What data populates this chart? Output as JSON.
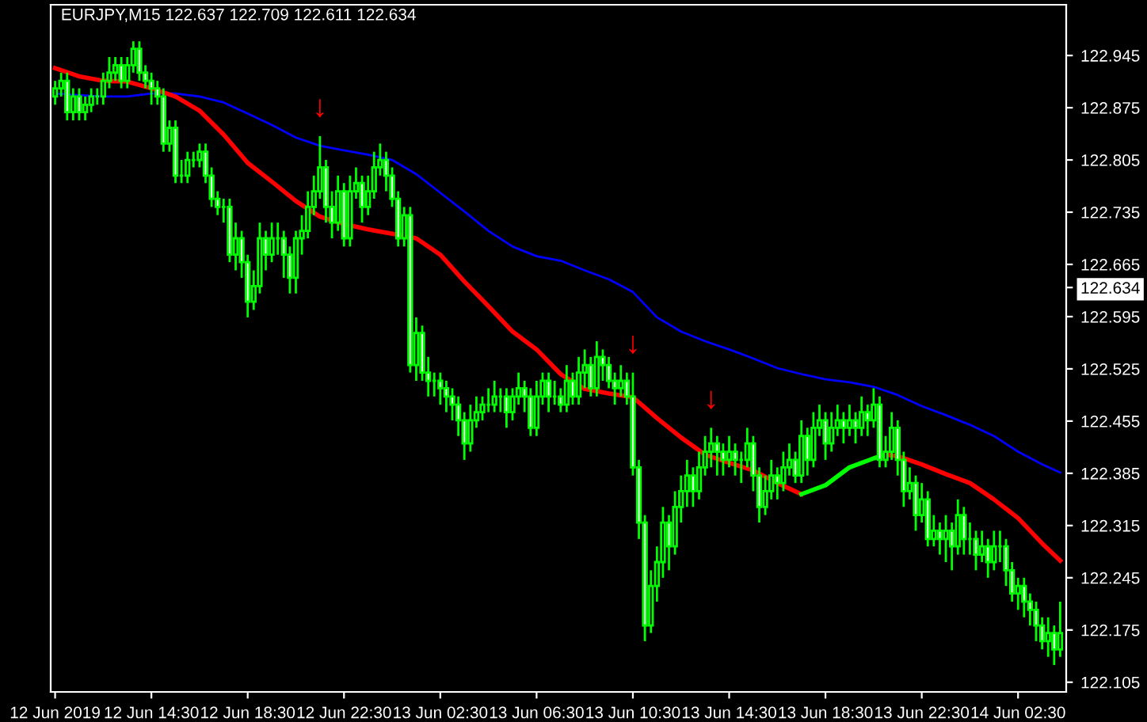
{
  "chart_data": {
    "type": "candlestick",
    "title": "EURJPY,M15 122.637 122.709 122.611 122.634",
    "x": [
      "2019-06-12T10:30",
      "2019-06-12T10:45",
      "2019-06-12T11:00",
      "2019-06-12T11:15",
      "2019-06-12T11:30",
      "2019-06-12T11:45",
      "2019-06-12T12:00",
      "2019-06-12T12:15",
      "2019-06-12T12:30",
      "2019-06-12T12:45",
      "2019-06-12T13:00",
      "2019-06-12T13:15",
      "2019-06-12T13:30",
      "2019-06-12T13:45",
      "2019-06-12T14:00",
      "2019-06-12T14:15",
      "2019-06-12T14:30",
      "2019-06-12T14:45",
      "2019-06-12T15:00",
      "2019-06-12T15:15",
      "2019-06-12T15:30",
      "2019-06-12T15:45",
      "2019-06-12T16:00",
      "2019-06-12T16:15",
      "2019-06-12T16:30",
      "2019-06-12T16:45",
      "2019-06-12T17:00",
      "2019-06-12T17:15",
      "2019-06-12T17:30",
      "2019-06-12T17:45",
      "2019-06-12T18:00",
      "2019-06-12T18:15",
      "2019-06-12T18:30",
      "2019-06-12T18:45",
      "2019-06-12T19:00",
      "2019-06-12T19:15",
      "2019-06-12T19:30",
      "2019-06-12T19:45",
      "2019-06-12T20:00",
      "2019-06-12T20:15",
      "2019-06-12T20:30",
      "2019-06-12T20:45",
      "2019-06-12T21:00",
      "2019-06-12T21:15",
      "2019-06-12T21:30",
      "2019-06-12T21:45",
      "2019-06-12T22:00",
      "2019-06-12T22:15",
      "2019-06-12T22:30",
      "2019-06-12T22:45",
      "2019-06-12T23:00",
      "2019-06-12T23:15",
      "2019-06-12T23:30",
      "2019-06-12T23:45",
      "2019-06-13T00:00",
      "2019-06-13T00:15",
      "2019-06-13T00:30",
      "2019-06-13T00:45",
      "2019-06-13T01:00",
      "2019-06-13T01:15",
      "2019-06-13T01:30",
      "2019-06-13T01:45",
      "2019-06-13T02:00",
      "2019-06-13T02:15",
      "2019-06-13T02:30",
      "2019-06-13T02:45",
      "2019-06-13T03:00",
      "2019-06-13T03:15",
      "2019-06-13T03:30",
      "2019-06-13T03:45",
      "2019-06-13T04:00",
      "2019-06-13T04:15",
      "2019-06-13T04:30",
      "2019-06-13T04:45",
      "2019-06-13T05:00",
      "2019-06-13T05:15",
      "2019-06-13T05:30",
      "2019-06-13T05:45",
      "2019-06-13T06:00",
      "2019-06-13T06:15",
      "2019-06-13T06:30",
      "2019-06-13T06:45",
      "2019-06-13T07:00",
      "2019-06-13T07:15",
      "2019-06-13T07:30",
      "2019-06-13T07:45",
      "2019-06-13T08:00",
      "2019-06-13T08:15",
      "2019-06-13T08:30",
      "2019-06-13T08:45",
      "2019-06-13T09:00",
      "2019-06-13T09:15",
      "2019-06-13T09:30",
      "2019-06-13T09:45",
      "2019-06-13T10:00",
      "2019-06-13T10:15",
      "2019-06-13T10:30",
      "2019-06-13T10:45",
      "2019-06-13T11:00",
      "2019-06-13T11:15",
      "2019-06-13T11:30",
      "2019-06-13T11:45",
      "2019-06-13T12:00",
      "2019-06-13T12:15",
      "2019-06-13T12:30",
      "2019-06-13T12:45",
      "2019-06-13T13:00",
      "2019-06-13T13:15",
      "2019-06-13T13:30",
      "2019-06-13T13:45",
      "2019-06-13T14:00",
      "2019-06-13T14:15",
      "2019-06-13T14:30",
      "2019-06-13T14:45",
      "2019-06-13T15:00",
      "2019-06-13T15:15",
      "2019-06-13T15:30",
      "2019-06-13T15:45",
      "2019-06-13T16:00",
      "2019-06-13T16:15",
      "2019-06-13T16:30",
      "2019-06-13T16:45",
      "2019-06-13T17:00",
      "2019-06-13T17:15",
      "2019-06-13T17:30",
      "2019-06-13T17:45",
      "2019-06-13T18:00",
      "2019-06-13T18:15",
      "2019-06-13T18:30",
      "2019-06-13T18:45",
      "2019-06-13T19:00",
      "2019-06-13T19:15",
      "2019-06-13T19:30",
      "2019-06-13T19:45",
      "2019-06-13T20:00",
      "2019-06-13T20:15",
      "2019-06-13T20:30",
      "2019-06-13T20:45",
      "2019-06-13T21:00",
      "2019-06-13T21:15",
      "2019-06-13T21:30",
      "2019-06-13T21:45",
      "2019-06-13T22:00",
      "2019-06-13T22:15",
      "2019-06-13T22:30",
      "2019-06-13T22:45",
      "2019-06-13T23:00",
      "2019-06-13T23:15",
      "2019-06-13T23:30",
      "2019-06-13T23:45",
      "2019-06-14T00:00",
      "2019-06-14T00:15",
      "2019-06-14T00:30",
      "2019-06-14T00:45",
      "2019-06-14T01:00",
      "2019-06-14T01:15",
      "2019-06-14T01:30",
      "2019-06-14T01:45",
      "2019-06-14T02:00",
      "2019-06-14T02:15",
      "2019-06-14T02:30",
      "2019-06-14T02:45",
      "2019-06-14T03:00",
      "2019-06-14T03:15",
      "2019-06-14T03:30",
      "2019-06-14T03:45",
      "2019-06-14T04:00",
      "2019-06-14T04:15"
    ],
    "series": [
      {
        "color": "#00ff00",
        "ohlc": [
          [
            122.89,
            122.911,
            122.879,
            122.901
          ],
          [
            122.901,
            122.922,
            122.89,
            122.911
          ],
          [
            122.911,
            122.922,
            122.858,
            122.869
          ],
          [
            122.869,
            122.901,
            122.858,
            122.89
          ],
          [
            122.89,
            122.901,
            122.858,
            122.869
          ],
          [
            122.869,
            122.89,
            122.858,
            122.879
          ],
          [
            122.879,
            122.901,
            122.869,
            122.89
          ],
          [
            122.89,
            122.901,
            122.879,
            122.89
          ],
          [
            122.89,
            122.922,
            122.879,
            122.911
          ],
          [
            122.911,
            122.943,
            122.901,
            122.922
          ],
          [
            122.922,
            122.943,
            122.911,
            122.932
          ],
          [
            122.932,
            122.943,
            122.901,
            122.911
          ],
          [
            122.911,
            122.943,
            122.901,
            122.932
          ],
          [
            122.932,
            122.964,
            122.922,
            122.954
          ],
          [
            122.954,
            122.964,
            122.911,
            122.922
          ],
          [
            122.922,
            122.932,
            122.901,
            122.911
          ],
          [
            122.911,
            122.922,
            122.879,
            122.901
          ],
          [
            122.901,
            122.911,
            122.879,
            122.89
          ],
          [
            122.89,
            122.901,
            122.816,
            122.827
          ],
          [
            122.827,
            122.858,
            122.816,
            122.848
          ],
          [
            122.848,
            122.858,
            122.774,
            122.784
          ],
          [
            122.784,
            122.805,
            122.774,
            122.784
          ],
          [
            122.784,
            122.816,
            122.774,
            122.805
          ],
          [
            122.805,
            122.816,
            122.795,
            122.805
          ],
          [
            122.805,
            122.827,
            122.795,
            122.816
          ],
          [
            122.816,
            122.827,
            122.774,
            122.784
          ],
          [
            122.784,
            122.795,
            122.742,
            122.753
          ],
          [
            122.753,
            122.763,
            122.731,
            122.742
          ],
          [
            122.742,
            122.753,
            122.721,
            122.742
          ],
          [
            122.742,
            122.753,
            122.668,
            122.678
          ],
          [
            122.678,
            122.721,
            122.657,
            122.7
          ],
          [
            122.7,
            122.71,
            122.647,
            122.668
          ],
          [
            122.668,
            122.678,
            122.594,
            122.615
          ],
          [
            122.615,
            122.657,
            122.604,
            122.636
          ],
          [
            122.636,
            122.721,
            122.626,
            122.7
          ],
          [
            122.7,
            122.71,
            122.657,
            122.678
          ],
          [
            122.678,
            122.721,
            122.668,
            122.7
          ],
          [
            122.7,
            122.721,
            122.678,
            122.7
          ],
          [
            122.7,
            122.71,
            122.647,
            122.678
          ],
          [
            122.678,
            122.689,
            122.626,
            122.647
          ],
          [
            122.647,
            122.71,
            122.626,
            122.7
          ],
          [
            122.7,
            122.731,
            122.678,
            122.71
          ],
          [
            122.71,
            122.763,
            122.7,
            122.742
          ],
          [
            122.742,
            122.784,
            122.731,
            122.763
          ],
          [
            122.763,
            122.837,
            122.753,
            122.795
          ],
          [
            122.795,
            122.805,
            122.721,
            122.742
          ],
          [
            122.742,
            122.763,
            122.7,
            122.721
          ],
          [
            122.721,
            122.784,
            122.71,
            122.763
          ],
          [
            122.763,
            122.774,
            122.689,
            122.7
          ],
          [
            122.7,
            122.784,
            122.689,
            122.763
          ],
          [
            122.763,
            122.795,
            122.753,
            122.774
          ],
          [
            122.774,
            122.784,
            122.721,
            122.742
          ],
          [
            122.742,
            122.784,
            122.731,
            122.763
          ],
          [
            122.763,
            122.816,
            122.753,
            122.795
          ],
          [
            122.795,
            122.827,
            122.784,
            122.805
          ],
          [
            122.805,
            122.816,
            122.763,
            122.784
          ],
          [
            122.784,
            122.795,
            122.742,
            122.753
          ],
          [
            122.753,
            122.763,
            122.689,
            122.7
          ],
          [
            122.7,
            122.742,
            122.689,
            122.731
          ],
          [
            122.731,
            122.742,
            122.52,
            122.53
          ],
          [
            122.53,
            122.594,
            122.509,
            122.573
          ],
          [
            122.573,
            122.583,
            122.509,
            122.52
          ],
          [
            122.52,
            122.541,
            122.488,
            122.509
          ],
          [
            122.509,
            122.52,
            122.488,
            122.509
          ],
          [
            122.509,
            122.52,
            122.477,
            122.499
          ],
          [
            122.499,
            122.509,
            122.467,
            122.488
          ],
          [
            122.488,
            122.499,
            122.456,
            122.477
          ],
          [
            122.477,
            122.488,
            122.435,
            122.456
          ],
          [
            122.456,
            122.467,
            122.403,
            122.425
          ],
          [
            122.425,
            122.477,
            122.414,
            122.456
          ],
          [
            122.456,
            122.488,
            122.446,
            122.467
          ],
          [
            122.467,
            122.488,
            122.456,
            122.477
          ],
          [
            122.477,
            122.499,
            122.467,
            122.477
          ],
          [
            122.477,
            122.509,
            122.467,
            122.488
          ],
          [
            122.488,
            122.499,
            122.467,
            122.488
          ],
          [
            122.488,
            122.499,
            122.446,
            122.467
          ],
          [
            122.467,
            122.499,
            122.456,
            122.488
          ],
          [
            122.488,
            122.52,
            122.477,
            122.499
          ],
          [
            122.499,
            122.509,
            122.467,
            122.488
          ],
          [
            122.488,
            122.499,
            122.435,
            122.446
          ],
          [
            122.446,
            122.509,
            122.435,
            122.488
          ],
          [
            122.488,
            122.52,
            122.477,
            122.509
          ],
          [
            122.509,
            122.52,
            122.467,
            122.488
          ],
          [
            122.488,
            122.509,
            122.477,
            122.488
          ],
          [
            122.488,
            122.499,
            122.467,
            122.477
          ],
          [
            122.477,
            122.53,
            122.467,
            122.509
          ],
          [
            122.509,
            122.52,
            122.477,
            122.488
          ],
          [
            122.488,
            122.541,
            122.477,
            122.52
          ],
          [
            122.52,
            122.551,
            122.499,
            122.53
          ],
          [
            122.53,
            122.541,
            122.488,
            122.499
          ],
          [
            122.499,
            122.562,
            122.488,
            122.541
          ],
          [
            122.541,
            122.551,
            122.509,
            122.53
          ],
          [
            122.53,
            122.541,
            122.499,
            122.509
          ],
          [
            122.509,
            122.52,
            122.477,
            122.499
          ],
          [
            122.499,
            122.53,
            122.488,
            122.509
          ],
          [
            122.509,
            122.52,
            122.477,
            122.488
          ],
          [
            122.488,
            122.52,
            122.382,
            122.393
          ],
          [
            122.393,
            122.403,
            122.297,
            122.319
          ],
          [
            122.319,
            122.329,
            122.16,
            122.181
          ],
          [
            122.181,
            122.255,
            122.171,
            122.234
          ],
          [
            122.234,
            122.287,
            122.213,
            122.266
          ],
          [
            122.266,
            122.34,
            122.245,
            122.319
          ],
          [
            122.319,
            122.329,
            122.255,
            122.287
          ],
          [
            122.287,
            122.361,
            122.276,
            122.34
          ],
          [
            122.34,
            122.382,
            122.319,
            122.361
          ],
          [
            122.361,
            122.403,
            122.34,
            122.382
          ],
          [
            122.382,
            122.393,
            122.34,
            122.361
          ],
          [
            122.361,
            122.414,
            122.35,
            122.393
          ],
          [
            122.393,
            122.435,
            122.382,
            122.414
          ],
          [
            122.414,
            122.446,
            122.393,
            122.425
          ],
          [
            122.425,
            122.435,
            122.382,
            122.414
          ],
          [
            122.414,
            122.425,
            122.382,
            122.403
          ],
          [
            122.403,
            122.435,
            122.393,
            122.414
          ],
          [
            122.414,
            122.425,
            122.382,
            122.403
          ],
          [
            122.403,
            122.414,
            122.372,
            122.403
          ],
          [
            122.403,
            122.446,
            122.393,
            122.425
          ],
          [
            122.425,
            122.435,
            122.361,
            122.382
          ],
          [
            122.382,
            122.393,
            122.319,
            122.34
          ],
          [
            122.34,
            122.382,
            122.329,
            122.361
          ],
          [
            122.361,
            122.403,
            122.35,
            122.382
          ],
          [
            122.382,
            122.393,
            122.35,
            122.372
          ],
          [
            122.372,
            122.414,
            122.361,
            122.393
          ],
          [
            122.393,
            122.425,
            122.382,
            122.403
          ],
          [
            122.403,
            122.414,
            122.372,
            122.382
          ],
          [
            122.382,
            122.456,
            122.372,
            122.435
          ],
          [
            122.435,
            122.446,
            122.382,
            122.403
          ],
          [
            122.403,
            122.467,
            122.393,
            122.446
          ],
          [
            122.446,
            122.477,
            122.435,
            122.456
          ],
          [
            122.456,
            122.467,
            122.403,
            122.425
          ],
          [
            122.425,
            122.467,
            122.414,
            122.446
          ],
          [
            122.446,
            122.477,
            122.435,
            122.456
          ],
          [
            122.456,
            122.467,
            122.425,
            122.446
          ],
          [
            122.446,
            122.477,
            122.435,
            122.456
          ],
          [
            122.456,
            122.467,
            122.425,
            122.446
          ],
          [
            122.446,
            122.488,
            122.435,
            122.467
          ],
          [
            122.467,
            122.477,
            122.435,
            122.456
          ],
          [
            122.456,
            122.499,
            122.446,
            122.477
          ],
          [
            122.477,
            122.488,
            122.393,
            122.403
          ],
          [
            122.403,
            122.435,
            122.393,
            122.414
          ],
          [
            122.414,
            122.467,
            122.403,
            122.446
          ],
          [
            122.446,
            122.456,
            122.382,
            122.403
          ],
          [
            122.403,
            122.414,
            122.34,
            122.361
          ],
          [
            122.361,
            122.393,
            122.35,
            122.372
          ],
          [
            122.372,
            122.382,
            122.308,
            122.329
          ],
          [
            122.329,
            122.372,
            122.319,
            122.35
          ],
          [
            122.35,
            122.361,
            122.287,
            122.297
          ],
          [
            122.297,
            122.329,
            122.287,
            122.308
          ],
          [
            122.308,
            122.319,
            122.276,
            122.297
          ],
          [
            122.297,
            122.329,
            122.266,
            122.308
          ],
          [
            122.308,
            122.319,
            122.255,
            122.287
          ],
          [
            122.287,
            122.35,
            122.276,
            122.329
          ],
          [
            122.329,
            122.34,
            122.276,
            122.297
          ],
          [
            122.297,
            122.319,
            122.276,
            122.297
          ],
          [
            122.297,
            122.308,
            122.255,
            122.276
          ],
          [
            122.276,
            122.308,
            122.266,
            122.287
          ],
          [
            122.287,
            122.297,
            122.245,
            122.266
          ],
          [
            122.266,
            122.308,
            122.255,
            122.287
          ],
          [
            122.287,
            122.308,
            122.266,
            122.287
          ],
          [
            122.287,
            122.297,
            122.234,
            122.255
          ],
          [
            122.255,
            122.266,
            122.213,
            122.224
          ],
          [
            122.224,
            122.245,
            122.202,
            122.234
          ],
          [
            122.234,
            122.245,
            122.192,
            122.213
          ],
          [
            122.213,
            122.224,
            122.181,
            122.202
          ],
          [
            122.202,
            122.213,
            122.16,
            122.181
          ],
          [
            122.181,
            122.192,
            122.149,
            122.16
          ],
          [
            122.16,
            122.192,
            122.139,
            122.171
          ],
          [
            122.171,
            122.181,
            122.128,
            122.149
          ],
          [
            122.149,
            122.213,
            122.139,
            122.171
          ]
        ]
      },
      {
        "type": "line",
        "color": "#0000ff",
        "x": [
          "2019-06-12T10:30",
          "2019-06-12T11:30",
          "2019-06-12T12:30",
          "2019-06-12T13:30",
          "2019-06-12T14:30",
          "2019-06-12T15:30",
          "2019-06-12T16:30",
          "2019-06-12T17:30",
          "2019-06-12T18:30",
          "2019-06-12T19:30",
          "2019-06-12T20:30",
          "2019-06-12T21:30",
          "2019-06-12T22:30",
          "2019-06-12T23:30",
          "2019-06-13T00:30",
          "2019-06-13T01:30",
          "2019-06-13T02:30",
          "2019-06-13T03:30",
          "2019-06-13T04:30",
          "2019-06-13T05:30",
          "2019-06-13T06:30",
          "2019-06-13T07:30",
          "2019-06-13T08:30",
          "2019-06-13T09:30",
          "2019-06-13T10:30",
          "2019-06-13T11:30",
          "2019-06-13T12:30",
          "2019-06-13T13:30",
          "2019-06-13T14:30",
          "2019-06-13T15:30",
          "2019-06-13T16:30",
          "2019-06-13T17:30",
          "2019-06-13T18:30",
          "2019-06-13T19:30",
          "2019-06-13T20:30",
          "2019-06-13T21:30",
          "2019-06-13T22:30",
          "2019-06-13T23:30",
          "2019-06-14T00:30",
          "2019-06-14T01:30",
          "2019-06-14T02:30",
          "2019-06-14T03:30",
          "2019-06-14T04:15"
        ],
        "values": [
          122.894,
          122.892,
          122.89,
          122.89,
          122.894,
          122.894,
          122.89,
          122.882,
          122.867,
          122.852,
          122.835,
          122.824,
          122.818,
          122.812,
          122.805,
          122.786,
          122.761,
          122.736,
          122.71,
          122.689,
          122.676,
          122.67,
          122.657,
          122.645,
          122.628,
          122.594,
          122.575,
          122.562,
          122.551,
          122.539,
          122.526,
          122.518,
          122.511,
          122.507,
          122.501,
          122.49,
          122.475,
          122.463,
          122.45,
          122.435,
          122.414,
          122.397,
          122.386
        ]
      },
      {
        "type": "line",
        "color": "#ff0000",
        "x": [
          "2019-06-12T10:30",
          "2019-06-12T11:30",
          "2019-06-12T12:30",
          "2019-06-12T13:30",
          "2019-06-12T14:30",
          "2019-06-12T15:30",
          "2019-06-12T16:30",
          "2019-06-12T17:30",
          "2019-06-12T18:30",
          "2019-06-12T19:30",
          "2019-06-12T20:30",
          "2019-06-12T21:30",
          "2019-06-12T22:30",
          "2019-06-12T23:30",
          "2019-06-13T00:30",
          "2019-06-13T01:30",
          "2019-06-13T02:30",
          "2019-06-13T03:30",
          "2019-06-13T04:30",
          "2019-06-13T05:30",
          "2019-06-13T06:30",
          "2019-06-13T07:30",
          "2019-06-13T08:30",
          "2019-06-13T09:30",
          "2019-06-13T10:30",
          "2019-06-13T11:30",
          "2019-06-13T12:30",
          "2019-06-13T13:30",
          "2019-06-13T14:30",
          "2019-06-13T15:30",
          "2019-06-13T16:30",
          "2019-06-13T17:30",
          "2019-06-13T18:30",
          "2019-06-13T19:30",
          "2019-06-13T20:30",
          "2019-06-13T21:00",
          "2019-06-13T21:30",
          "2019-06-13T22:30",
          "2019-06-13T23:30",
          "2019-06-14T00:30",
          "2019-06-14T01:30",
          "2019-06-14T02:30",
          "2019-06-14T03:30",
          "2019-06-14T04:15"
        ],
        "values": [
          122.928,
          122.917,
          122.911,
          122.91,
          122.901,
          122.89,
          122.871,
          122.839,
          122.801,
          122.776,
          122.75,
          122.729,
          122.719,
          122.712,
          122.706,
          122.7,
          122.678,
          122.642,
          122.609,
          122.575,
          122.551,
          122.518,
          122.498,
          122.492,
          122.487,
          122.459,
          122.433,
          122.41,
          122.399,
          122.389,
          122.372,
          122.357,
          null,
          null,
          null,
          122.41,
          122.408,
          122.397,
          122.384,
          122.372,
          122.35,
          122.325,
          122.291,
          122.268
        ]
      },
      {
        "type": "line",
        "color": "#00ff00",
        "x": [
          "2019-06-13T17:30",
          "2019-06-13T18:30",
          "2019-06-13T19:30",
          "2019-06-13T20:30",
          "2019-06-13T21:00"
        ],
        "values": [
          122.357,
          122.369,
          122.393,
          122.405,
          122.41
        ]
      }
    ],
    "xlim": [
      "2019-06-12T10:19",
      "2019-06-14T04:30"
    ],
    "xticks": [
      {
        "value": "2019-06-12T10:30",
        "label": "12 Jun 2019"
      },
      {
        "value": "2019-06-12T14:30",
        "label": "12 Jun 14:30"
      },
      {
        "value": "2019-06-12T18:30",
        "label": "12 Jun 18:30"
      },
      {
        "value": "2019-06-12T22:30",
        "label": "12 Jun 22:30"
      },
      {
        "value": "2019-06-13T02:30",
        "label": "13 Jun 02:30"
      },
      {
        "value": "2019-06-13T06:30",
        "label": "13 Jun 06:30"
      },
      {
        "value": "2019-06-13T10:30",
        "label": "13 Jun 10:30"
      },
      {
        "value": "2019-06-13T14:30",
        "label": "13 Jun 14:30"
      },
      {
        "value": "2019-06-13T18:30",
        "label": "13 Jun 18:30"
      },
      {
        "value": "2019-06-13T22:30",
        "label": "13 Jun 22:30"
      },
      {
        "value": "2019-06-14T02:30",
        "label": "14 Jun 02:30"
      }
    ],
    "ylim": [
      122.092,
      123.013
    ],
    "yticks": [
      122.105,
      122.175,
      122.245,
      122.315,
      122.385,
      122.455,
      122.525,
      122.595,
      {
        "value": 122.634,
        "label": "122.634"
      },
      122.665,
      122.735,
      122.805,
      122.875,
      122.945
    ],
    "annotations": [
      {
        "text": "↓",
        "x": "2019-06-12T21:30",
        "y": 122.837
      },
      {
        "text": "↓",
        "x": "2019-06-13T10:30",
        "y": 122.52
      },
      {
        "text": "↓",
        "x": "2019-06-13T13:45",
        "y": 122.446
      }
    ],
    "grid": false,
    "legend": false
  }
}
